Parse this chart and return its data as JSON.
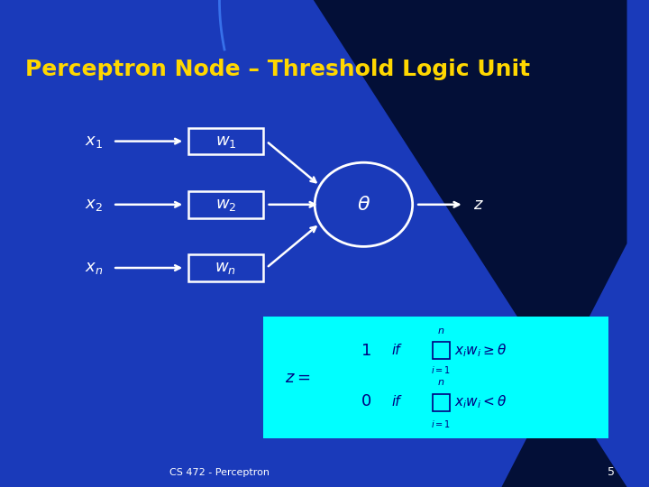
{
  "title": "Perceptron Node – Threshold Logic Unit",
  "title_color": "#FFD700",
  "bg_color": "#1A3ABA",
  "bg_gradient_top": "#0A1A7A",
  "bg_gradient_right": "#000A40",
  "box_facecolor": "#1A3ABA",
  "box_edgecolor": "#FFFFFF",
  "circle_facecolor": "#1A3ABA",
  "circle_edgecolor": "#FFFFFF",
  "arrow_color": "#FFFFFF",
  "formula_bg": "#00FFFF",
  "formula_text": "#000080",
  "footer_text": "CS 472 - Perceptron",
  "page_num": "5",
  "inputs": [
    "x_1",
    "x_2",
    "x_n"
  ],
  "weights": [
    "w_1",
    "w_2",
    "w_n"
  ],
  "theta_label": "\\theta",
  "z_label": "z"
}
